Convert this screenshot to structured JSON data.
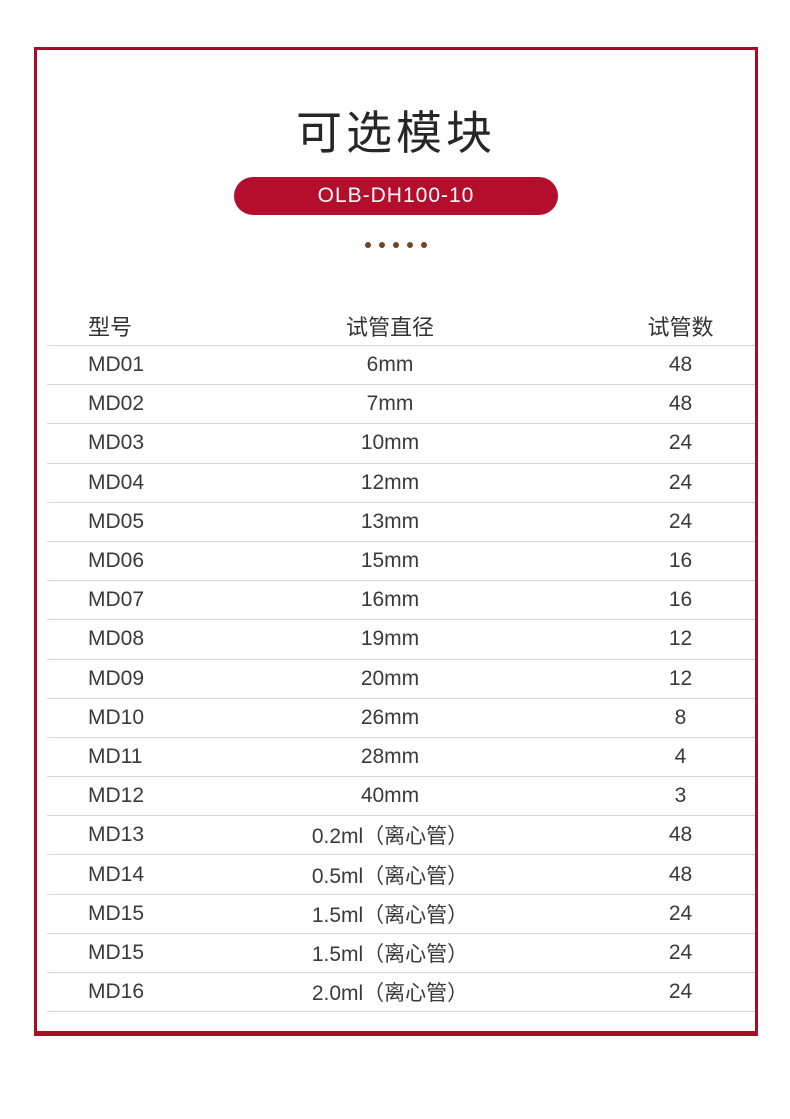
{
  "header": {
    "title": "可选模块",
    "badge": "OLB-DH100-10",
    "dots_count": 5
  },
  "colors": {
    "frame_border_red": "#A60E28",
    "badge_red": "#B50E2D",
    "dot_brown": "#6F4529",
    "divider_gray": "#d3d5d8"
  },
  "table": {
    "headers": [
      "型号",
      "试管直径",
      "试管数"
    ],
    "rows": [
      [
        "MD01",
        "6mm",
        "48"
      ],
      [
        "MD02",
        "7mm",
        "48"
      ],
      [
        "MD03",
        "10mm",
        "24"
      ],
      [
        "MD04",
        "12mm",
        "24"
      ],
      [
        "MD05",
        "13mm",
        "24"
      ],
      [
        "MD06",
        "15mm",
        "16"
      ],
      [
        "MD07",
        "16mm",
        "16"
      ],
      [
        "MD08",
        "19mm",
        "12"
      ],
      [
        "MD09",
        "20mm",
        "12"
      ],
      [
        "MD10",
        "26mm",
        "8"
      ],
      [
        "MD11",
        "28mm",
        "4"
      ],
      [
        "MD12",
        "40mm",
        "3"
      ],
      [
        "MD13",
        "0.2ml（离心管）",
        "48"
      ],
      [
        "MD14",
        "0.5ml（离心管）",
        "48"
      ],
      [
        "MD15",
        "1.5ml（离心管）",
        "24"
      ],
      [
        "MD15",
        "1.5ml（离心管）",
        "24"
      ],
      [
        "MD16",
        "2.0ml（离心管）",
        "24"
      ]
    ]
  }
}
